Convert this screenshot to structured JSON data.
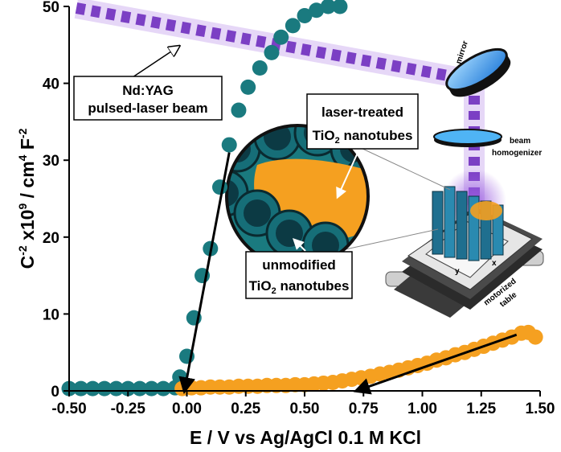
{
  "chart_data": {
    "type": "scatter",
    "xlabel": "E / V vs Ag/AgCl 0.1 M KCl",
    "ylabel_parts": [
      "C",
      "-2",
      " x10",
      "9",
      " / cm",
      "4",
      " F",
      "-2"
    ],
    "xlim": [
      -0.5,
      1.5
    ],
    "ylim": [
      0,
      50
    ],
    "x_ticks": [
      "-0.50",
      "-0.25",
      "0.00",
      "0.25",
      "0.50",
      "0.75",
      "1.00",
      "1.25",
      "1.50"
    ],
    "y_ticks": [
      "0",
      "10",
      "20",
      "30",
      "40",
      "50"
    ],
    "series": [
      {
        "color": "#1a7a7f",
        "x": [
          -0.5,
          -0.45,
          -0.4,
          -0.35,
          -0.3,
          -0.25,
          -0.2,
          -0.15,
          -0.1,
          -0.05,
          -0.03,
          0.0,
          0.03,
          0.065,
          0.1,
          0.14,
          0.18,
          0.22,
          0.26,
          0.31,
          0.36,
          0.4,
          0.45,
          0.5,
          0.55,
          0.6,
          0.65
        ],
        "y": [
          0.3,
          0.3,
          0.3,
          0.3,
          0.3,
          0.3,
          0.3,
          0.3,
          0.3,
          0.4,
          1.8,
          4.5,
          9.5,
          15.0,
          18.5,
          26.5,
          32.0,
          36.5,
          39.5,
          42.0,
          44.0,
          46.0,
          47.5,
          48.8,
          49.5,
          50.0,
          50.0
        ]
      },
      {
        "color": "#f5a020",
        "x": [
          -0.02,
          0.02,
          0.06,
          0.1,
          0.14,
          0.18,
          0.22,
          0.26,
          0.3,
          0.34,
          0.38,
          0.42,
          0.46,
          0.5,
          0.54,
          0.58,
          0.62,
          0.66,
          0.7,
          0.74,
          0.78,
          0.82,
          0.86,
          0.9,
          0.94,
          0.98,
          1.02,
          1.06,
          1.1,
          1.14,
          1.18,
          1.22,
          1.26,
          1.3,
          1.34,
          1.38,
          1.42,
          1.45,
          1.48
        ],
        "y": [
          0.3,
          0.4,
          0.4,
          0.5,
          0.5,
          0.5,
          0.6,
          0.6,
          0.6,
          0.7,
          0.7,
          0.7,
          0.8,
          0.8,
          0.9,
          1.0,
          1.1,
          1.3,
          1.5,
          1.7,
          1.9,
          2.2,
          2.4,
          2.7,
          3.0,
          3.3,
          3.6,
          4.0,
          4.3,
          4.7,
          5.0,
          5.4,
          5.8,
          6.2,
          6.6,
          7.0,
          7.5,
          7.6,
          7.0
        ]
      }
    ],
    "fit_lines": [
      {
        "x": [
          0.18,
          -0.01
        ],
        "y": [
          31.0,
          0.0
        ]
      },
      {
        "x": [
          1.4,
          0.72
        ],
        "y": [
          7.3,
          0.0
        ]
      }
    ]
  },
  "illustration": {
    "beam_label_line1": "Nd:YAG",
    "beam_label_line2": "pulsed-laser beam",
    "laser_treated_line1": "laser-treated",
    "laser_treated_line2_main": "TiO",
    "laser_treated_line2_sub": "2",
    "laser_treated_line2_rest": " nanotubes",
    "unmodified_line1": "unmodified",
    "unmodified_line2_main": "TiO",
    "unmodified_line2_sub": "2",
    "unmodified_line2_rest": " nanotubes",
    "mirror_label": "mirror",
    "homogenizer_label_line1": "beam",
    "homogenizer_label_line2": "homogenizer",
    "table_label_line1": "motorized",
    "table_label_line2": "table",
    "axis_label_x": "x",
    "axis_label_y": "y",
    "colors": {
      "beam": "#7b3fc4",
      "teal": "#1a7a7f",
      "orange": "#f5a020",
      "mirror_blue": "#3fa9f5"
    }
  }
}
